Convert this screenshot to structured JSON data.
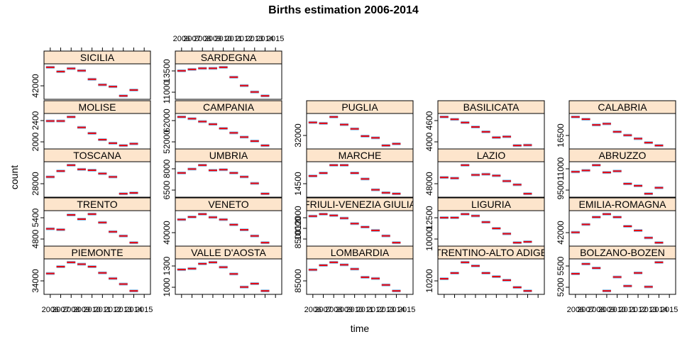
{
  "chart_data": {
    "type": "trellis-errorbar",
    "title": "Births estimation 2006-2014",
    "xlabel": "time",
    "ylabel": "count",
    "x_ticks": [
      "2006",
      "2007",
      "2008",
      "2009",
      "2010",
      "2011",
      "2012",
      "2013",
      "2014",
      "2015"
    ],
    "colors": {
      "point": "#e8000b",
      "errorbar": "#5aa0d8",
      "strip": "#fde5cc"
    },
    "panels": [
      {
        "name": "SICILIA",
        "col": 0,
        "row": 0,
        "ticks": [
          "42000"
        ],
        "values": [
          50000,
          48600,
          49600,
          48900,
          46100,
          44300,
          43700,
          40700,
          42600
        ]
      },
      {
        "name": "SARDEGNA",
        "col": 1,
        "row": 0,
        "ticks": [
          "13500",
          "11000"
        ],
        "values": [
          13800,
          14000,
          14150,
          14150,
          14300,
          12900,
          11700,
          10800,
          10250
        ]
      },
      {
        "name": "MOLISE",
        "col": 0,
        "row": 1,
        "ticks": [
          "2400",
          "2000"
        ],
        "values": [
          2470,
          2470,
          2540,
          2360,
          2260,
          2150,
          2090,
          2050,
          2080
        ]
      },
      {
        "name": "CAMPANIA",
        "col": 1,
        "row": 1,
        "ticks": [
          "62000",
          "52000"
        ],
        "values": [
          63500,
          62700,
          61400,
          60200,
          58300,
          56300,
          54400,
          52600,
          50600
        ]
      },
      {
        "name": "PUGLIA",
        "col": 2,
        "row": 1,
        "ticks": [
          "32000"
        ],
        "values": [
          37300,
          37100,
          38600,
          36800,
          35800,
          34100,
          33700,
          31900,
          32300
        ]
      },
      {
        "name": "BASILICATA",
        "col": 3,
        "row": 1,
        "ticks": [
          "4600",
          "4000"
        ],
        "values": [
          4840,
          4780,
          4700,
          4590,
          4470,
          4330,
          4350,
          4130,
          4140
        ]
      },
      {
        "name": "CALABRIA",
        "col": 4,
        "row": 1,
        "ticks": [
          "16500"
        ],
        "values": [
          18200,
          18000,
          17500,
          17600,
          16900,
          16600,
          16300,
          15950,
          15700
        ]
      },
      {
        "name": "TOSCANA",
        "col": 0,
        "row": 2,
        "ticks": [
          "28000"
        ],
        "values": [
          31000,
          31700,
          32400,
          31900,
          31800,
          31400,
          31000,
          29000,
          29100
        ]
      },
      {
        "name": "UMBRIA",
        "col": 1,
        "row": 2,
        "ticks": [
          "8000",
          "6500"
        ],
        "values": [
          8300,
          8600,
          8900,
          8500,
          8550,
          8300,
          8000,
          7500,
          6700
        ]
      },
      {
        "name": "MARCHE",
        "col": 2,
        "row": 2,
        "ticks": [
          "14500"
        ],
        "values": [
          14700,
          14850,
          15250,
          15250,
          14850,
          14550,
          14000,
          13850,
          13800
        ]
      },
      {
        "name": "LAZIO",
        "col": 3,
        "row": 2,
        "ticks": [
          "48000"
        ],
        "values": [
          52000,
          51800,
          55400,
          52700,
          52900,
          52500,
          51000,
          50000,
          47500
        ]
      },
      {
        "name": "ABRUZZO",
        "col": 4,
        "row": 2,
        "ticks": [
          "11000",
          "9500"
        ],
        "values": [
          11150,
          11250,
          11650,
          11100,
          11200,
          10250,
          10100,
          9500,
          9950
        ]
      },
      {
        "name": "TRENTO",
        "col": 0,
        "row": 3,
        "ticks": [
          "5400",
          "4800"
        ],
        "values": [
          5150,
          5130,
          5480,
          5380,
          5500,
          5300,
          5080,
          4980,
          4820
        ]
      },
      {
        "name": "VENETO",
        "col": 1,
        "row": 3,
        "ticks": [
          "40000"
        ],
        "values": [
          46900,
          47700,
          48600,
          47600,
          46900,
          45300,
          43700,
          41800,
          39700
        ]
      },
      {
        "name": "FRIULI-VENEZIA GIULIA",
        "col": 2,
        "row": 3,
        "ticks": [
          "12000",
          "10000",
          "8500"
        ],
        "values": [
          11300,
          11450,
          11350,
          11150,
          10750,
          10500,
          10250,
          9850,
          9350
        ]
      },
      {
        "name": "LIGURIA",
        "col": 3,
        "row": 3,
        "ticks": [
          "12500",
          "10000"
        ],
        "values": [
          12400,
          12400,
          12600,
          12500,
          12150,
          11800,
          11500,
          11000,
          11050
        ]
      },
      {
        "name": "EMILIA-ROMAGNA",
        "col": 4,
        "row": 3,
        "ticks": [
          "42000"
        ],
        "values": [
          38500,
          39800,
          41000,
          41500,
          41000,
          39500,
          38800,
          37600,
          36800
        ]
      },
      {
        "name": "PIEMONTE",
        "col": 0,
        "row": 4,
        "ticks": [
          "34000"
        ],
        "values": [
          37300,
          38400,
          39100,
          38800,
          38400,
          37400,
          36500,
          35600,
          34500
        ]
      },
      {
        "name": "VALLE D'AOSTA",
        "col": 1,
        "row": 4,
        "ticks": [
          "1300",
          "1000"
        ],
        "values": [
          1245,
          1255,
          1305,
          1320,
          1270,
          1200,
          1065,
          1100,
          1025
        ]
      },
      {
        "name": "LOMBARDIA",
        "col": 2,
        "row": 4,
        "ticks": [
          "85000"
        ],
        "values": [
          95000,
          96800,
          98000,
          97000,
          95300,
          92000,
          91500,
          88900,
          86500
        ]
      },
      {
        "name": "TRENTINO-ALTO ADIGE",
        "col": 3,
        "row": 4,
        "ticks": [
          "10200"
        ],
        "values": [
          10370,
          10450,
          10600,
          10550,
          10450,
          10400,
          10350,
          10250,
          10200
        ]
      },
      {
        "name": "BOLZANO-BOZEN",
        "col": 4,
        "row": 4,
        "ticks": [
          "5500",
          "5200"
        ],
        "values": [
          5400,
          5520,
          5470,
          5190,
          5360,
          5250,
          5410,
          5240,
          5540
        ]
      }
    ]
  }
}
